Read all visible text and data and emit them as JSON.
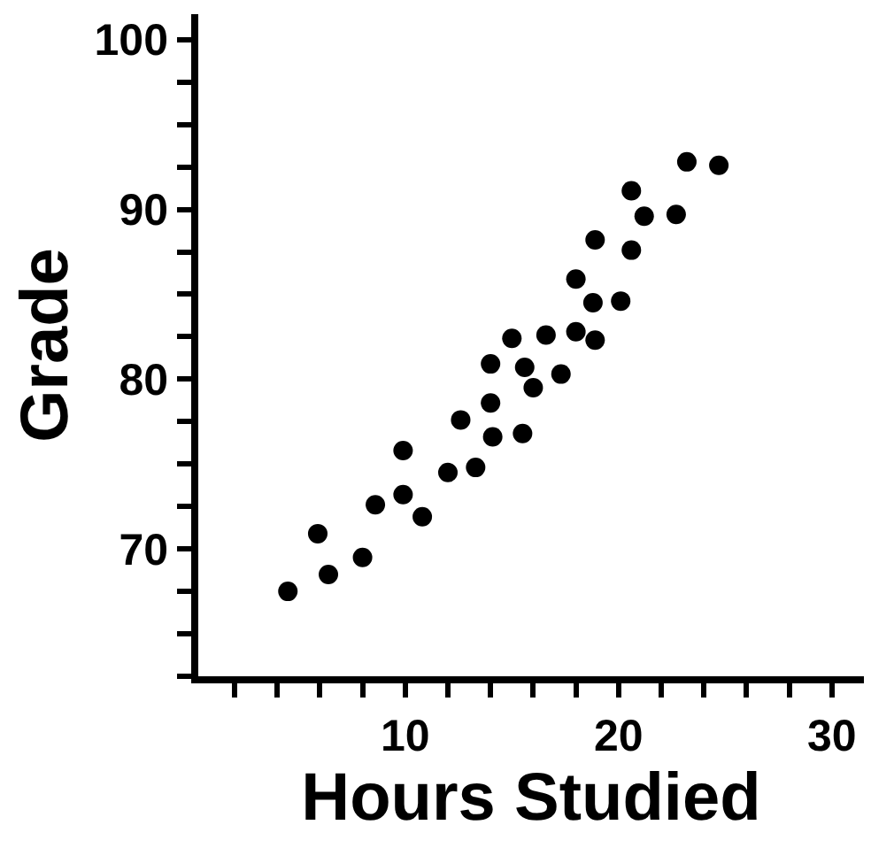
{
  "chart_data": {
    "type": "scatter",
    "xlabel": "Hours Studied",
    "ylabel": "Grade",
    "marker": "circle",
    "xlim": [
      0.3,
      31.5
    ],
    "ylim": [
      62.5,
      101.5
    ],
    "xticks": [
      {
        "value": 2,
        "label": null
      },
      {
        "value": 4,
        "label": null
      },
      {
        "value": 6,
        "label": null
      },
      {
        "value": 8,
        "label": null
      },
      10,
      {
        "value": 12,
        "label": null
      },
      {
        "value": 14,
        "label": null
      },
      {
        "value": 16,
        "label": null
      },
      {
        "value": 18,
        "label": null
      },
      20,
      {
        "value": 22,
        "label": null
      },
      {
        "value": 24,
        "label": null
      },
      {
        "value": 26,
        "label": null
      },
      {
        "value": 28,
        "label": null
      },
      30
    ],
    "yticks": [
      {
        "value": 62.5,
        "label": null
      },
      {
        "value": 65,
        "label": null
      },
      {
        "value": 67.5,
        "label": null
      },
      70,
      {
        "value": 72.5,
        "label": null
      },
      {
        "value": 75,
        "label": null
      },
      {
        "value": 77.5,
        "label": null
      },
      80,
      {
        "value": 82.5,
        "label": null
      },
      {
        "value": 85,
        "label": null
      },
      {
        "value": 87.5,
        "label": null
      },
      90,
      {
        "value": 92.5,
        "label": null
      },
      {
        "value": 95,
        "label": null
      },
      {
        "value": 97.5,
        "label": null
      },
      100
    ],
    "series": [
      {
        "color": "#000000",
        "x": [
          23.2,
          24.7,
          20.6,
          21.2,
          22.7,
          18.9,
          20.6,
          18.0,
          18.8,
          20.1,
          15.0,
          16.6,
          18.0,
          18.9,
          14.0,
          15.6,
          17.3,
          16.0,
          14.0,
          12.6,
          14.1,
          15.5,
          9.9,
          12.0,
          13.3,
          8.6,
          9.9,
          10.8,
          5.9,
          6.4,
          8.0,
          4.5
        ],
        "values": [
          92.8,
          92.6,
          91.1,
          89.6,
          89.7,
          88.2,
          87.6,
          85.9,
          84.5,
          84.6,
          82.4,
          82.6,
          82.8,
          82.3,
          80.9,
          80.7,
          80.3,
          79.5,
          78.6,
          77.6,
          76.6,
          76.8,
          75.8,
          74.5,
          74.8,
          72.6,
          73.2,
          71.9,
          70.9,
          68.5,
          69.5,
          67.5
        ]
      }
    ]
  }
}
